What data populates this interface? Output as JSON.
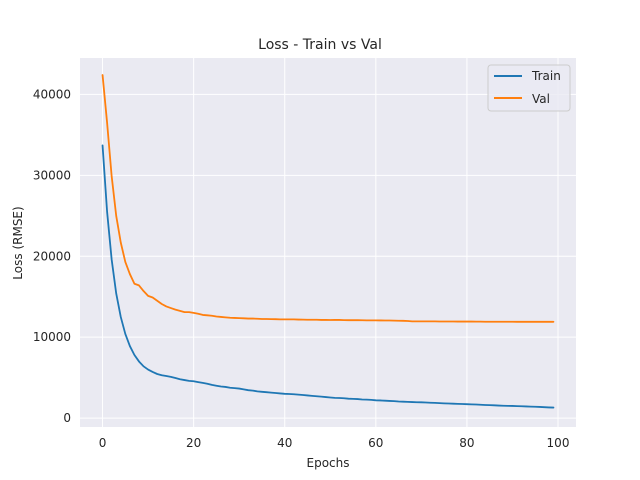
{
  "chart_data": {
    "type": "line",
    "title": "Loss - Train vs Val",
    "xlabel": "Epochs",
    "ylabel": "Loss (RMSE)",
    "xlim": [
      -4.95,
      103.95
    ],
    "ylim": [
      -1100,
      44500
    ],
    "xticks": [
      0,
      20,
      40,
      60,
      80,
      100
    ],
    "yticks": [
      0,
      10000,
      20000,
      30000,
      40000
    ],
    "grid": true,
    "legend_position": "top-right",
    "colors": {
      "background": "#eaeaf2",
      "grid": "#ffffff",
      "text": "#262626"
    },
    "series": [
      {
        "name": "Train",
        "color": "#1f77b4",
        "x": [
          0,
          1,
          2,
          3,
          4,
          5,
          6,
          7,
          8,
          9,
          10,
          11,
          12,
          13,
          14,
          15,
          16,
          17,
          18,
          19,
          20,
          21,
          22,
          23,
          24,
          25,
          26,
          27,
          28,
          29,
          30,
          31,
          32,
          33,
          34,
          35,
          36,
          37,
          38,
          39,
          40,
          41,
          42,
          43,
          44,
          45,
          46,
          47,
          48,
          49,
          50,
          51,
          52,
          53,
          54,
          55,
          56,
          57,
          58,
          59,
          60,
          61,
          62,
          63,
          64,
          65,
          66,
          67,
          68,
          69,
          70,
          71,
          72,
          73,
          74,
          75,
          76,
          77,
          78,
          79,
          80,
          81,
          82,
          83,
          84,
          85,
          86,
          87,
          88,
          89,
          90,
          91,
          92,
          93,
          94,
          95,
          96,
          97,
          98,
          99
        ],
        "values": [
          33700,
          25500,
          19600,
          15400,
          12500,
          10400,
          8900,
          7800,
          7000,
          6400,
          6000,
          5700,
          5450,
          5300,
          5200,
          5100,
          4950,
          4800,
          4700,
          4600,
          4550,
          4450,
          4350,
          4250,
          4100,
          4000,
          3900,
          3850,
          3750,
          3700,
          3650,
          3550,
          3450,
          3400,
          3300,
          3250,
          3200,
          3150,
          3100,
          3050,
          3000,
          2980,
          2950,
          2900,
          2850,
          2800,
          2750,
          2700,
          2650,
          2600,
          2550,
          2500,
          2480,
          2450,
          2400,
          2380,
          2350,
          2300,
          2280,
          2250,
          2200,
          2180,
          2150,
          2120,
          2100,
          2050,
          2030,
          2000,
          1980,
          1960,
          1950,
          1930,
          1900,
          1880,
          1850,
          1820,
          1800,
          1780,
          1760,
          1740,
          1720,
          1700,
          1680,
          1650,
          1620,
          1600,
          1580,
          1550,
          1530,
          1510,
          1500,
          1480,
          1460,
          1440,
          1420,
          1400,
          1380,
          1350,
          1320,
          1300
        ]
      },
      {
        "name": "Val",
        "color": "#ff7f0e",
        "x": [
          0,
          1,
          2,
          3,
          4,
          5,
          6,
          7,
          8,
          9,
          10,
          11,
          12,
          13,
          14,
          15,
          16,
          17,
          18,
          19,
          20,
          21,
          22,
          23,
          24,
          25,
          26,
          27,
          28,
          29,
          30,
          31,
          32,
          33,
          34,
          35,
          36,
          37,
          38,
          39,
          40,
          41,
          42,
          43,
          44,
          45,
          46,
          47,
          48,
          49,
          50,
          51,
          52,
          53,
          54,
          55,
          56,
          57,
          58,
          59,
          60,
          61,
          62,
          63,
          64,
          65,
          66,
          67,
          68,
          69,
          70,
          71,
          72,
          73,
          74,
          75,
          76,
          77,
          78,
          79,
          80,
          81,
          82,
          83,
          84,
          85,
          86,
          87,
          88,
          89,
          90,
          91,
          92,
          93,
          94,
          95,
          96,
          97,
          98,
          99
        ],
        "values": [
          42400,
          36500,
          29900,
          25000,
          21700,
          19300,
          17800,
          16600,
          16400,
          15700,
          15100,
          14900,
          14500,
          14100,
          13800,
          13600,
          13400,
          13250,
          13100,
          13100,
          13000,
          12900,
          12750,
          12700,
          12650,
          12550,
          12500,
          12450,
          12400,
          12380,
          12350,
          12330,
          12300,
          12300,
          12280,
          12250,
          12250,
          12230,
          12220,
          12200,
          12200,
          12200,
          12200,
          12180,
          12170,
          12150,
          12150,
          12150,
          12130,
          12130,
          12120,
          12130,
          12130,
          12110,
          12100,
          12100,
          12100,
          12090,
          12080,
          12080,
          12080,
          12070,
          12060,
          12060,
          12050,
          12030,
          12020,
          12000,
          11950,
          11950,
          11950,
          11950,
          11950,
          11950,
          11940,
          11940,
          11940,
          11940,
          11930,
          11930,
          11930,
          11930,
          11920,
          11920,
          11910,
          11910,
          11910,
          11910,
          11910,
          11910,
          11910,
          11900,
          11900,
          11900,
          11900,
          11900,
          11900,
          11900,
          11900,
          11900
        ]
      }
    ]
  }
}
